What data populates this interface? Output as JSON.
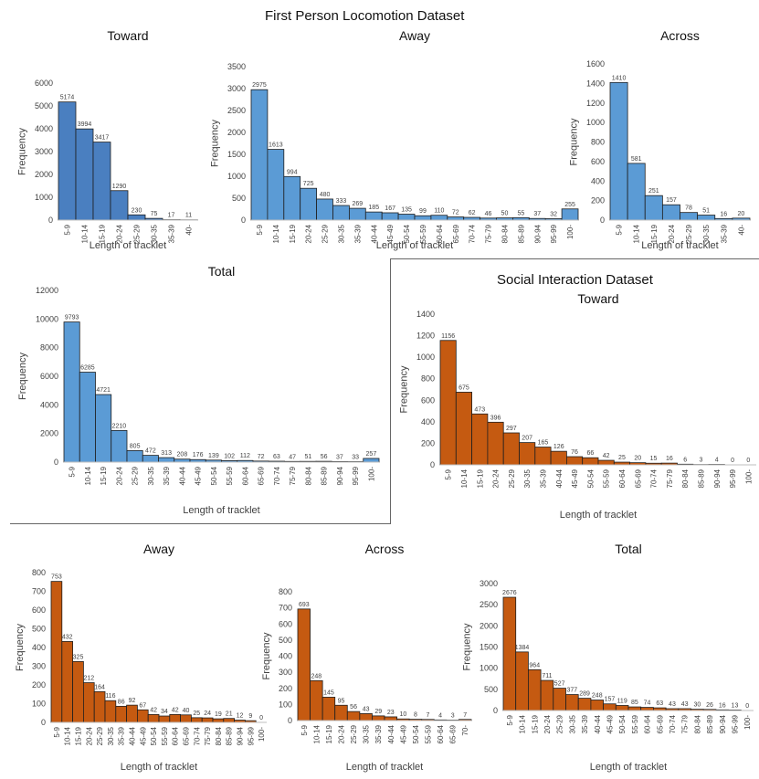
{
  "page": {
    "fpl_title": "First Person Locomotion Dataset",
    "si_title": "Social Interaction Dataset"
  },
  "colors": {
    "blue": "#5b9bd5",
    "blue_dark": "#4a7fc0",
    "orange": "#c55a11",
    "axis": "#bfbfbf",
    "grid": "#d9d9d9"
  },
  "chart_data": [
    {
      "id": "fpl-toward",
      "type": "bar",
      "title": "Toward",
      "xlabel": "Length of tracklet",
      "ylabel": "Frequency",
      "ylim": [
        0,
        6000
      ],
      "yticks": [
        0,
        1000,
        2000,
        3000,
        4000,
        5000,
        6000
      ],
      "categories": [
        "5-9",
        "10-14",
        "15-19",
        "20-24",
        "25-29",
        "30-35",
        "35-39",
        "40-"
      ],
      "values": [
        5174,
        3994,
        3417,
        1290,
        230,
        75,
        17,
        11
      ],
      "color": "#4a7fc0"
    },
    {
      "id": "fpl-away",
      "type": "bar",
      "title": "Away",
      "xlabel": "Length of tracklet",
      "ylabel": "Frequency",
      "ylim": [
        0,
        3500
      ],
      "yticks": [
        0,
        500,
        1000,
        1500,
        2000,
        2500,
        3000,
        3500
      ],
      "categories": [
        "5-9",
        "10-14",
        "15-19",
        "20-24",
        "25-29",
        "30-35",
        "35-39",
        "40-44",
        "45-49",
        "50-54",
        "55-59",
        "60-64",
        "65-69",
        "70-74",
        "75-79",
        "80-84",
        "85-89",
        "90-94",
        "95-99",
        "100-"
      ],
      "values": [
        2975,
        1613,
        994,
        725,
        480,
        333,
        269,
        185,
        167,
        135,
        99,
        110,
        72,
        62,
        46,
        50,
        55,
        37,
        32,
        255
      ],
      "color": "#5b9bd5"
    },
    {
      "id": "fpl-across",
      "type": "bar",
      "title": "Across",
      "xlabel": "Length of tracklet",
      "ylabel": "Frequency",
      "ylim": [
        0,
        1600
      ],
      "yticks": [
        0,
        200,
        400,
        600,
        800,
        1000,
        1200,
        1400,
        1600
      ],
      "categories": [
        "5-9",
        "10-14",
        "15-19",
        "20-24",
        "25-29",
        "30-35",
        "35-39",
        "40-"
      ],
      "values": [
        1410,
        581,
        251,
        157,
        78,
        51,
        16,
        20
      ],
      "color": "#5b9bd5"
    },
    {
      "id": "fpl-total",
      "type": "bar",
      "title": "Total",
      "xlabel": "Length of tracklet",
      "ylabel": "Frequency",
      "ylim": [
        0,
        12000
      ],
      "yticks": [
        0,
        2000,
        4000,
        6000,
        8000,
        10000,
        12000
      ],
      "categories": [
        "5-9",
        "10-14",
        "15-19",
        "20-24",
        "25-29",
        "30-35",
        "35-39",
        "40-44",
        "45-49",
        "50-54",
        "55-59",
        "60-64",
        "65-69",
        "70-74",
        "75-79",
        "80-84",
        "85-89",
        "90-94",
        "95-99",
        "100-"
      ],
      "values": [
        9793,
        6285,
        4721,
        2210,
        805,
        472,
        313,
        208,
        176,
        139,
        102,
        112,
        72,
        63,
        47,
        51,
        56,
        37,
        33,
        257
      ],
      "color": "#5b9bd5"
    },
    {
      "id": "si-toward",
      "type": "bar",
      "title": "Toward",
      "xlabel": "Length of tracklet",
      "ylabel": "Frequency",
      "ylim": [
        0,
        1400
      ],
      "yticks": [
        0,
        200,
        400,
        600,
        800,
        1000,
        1200,
        1400
      ],
      "categories": [
        "5-9",
        "10-14",
        "15-19",
        "20-24",
        "25-29",
        "30-35",
        "35-39",
        "40-44",
        "45-49",
        "50-54",
        "55-59",
        "60-64",
        "65-69",
        "70-74",
        "75-79",
        "80-84",
        "85-89",
        "90-94",
        "95-99",
        "100-"
      ],
      "values": [
        1156,
        675,
        473,
        396,
        297,
        207,
        165,
        126,
        76,
        66,
        42,
        25,
        20,
        15,
        16,
        6,
        3,
        4,
        0,
        0
      ],
      "color": "#c55a11"
    },
    {
      "id": "si-away",
      "type": "bar",
      "title": "Away",
      "xlabel": "Length of tracklet",
      "ylabel": "Frequency",
      "ylim": [
        0,
        800
      ],
      "yticks": [
        0,
        100,
        200,
        300,
        400,
        500,
        600,
        700,
        800
      ],
      "categories": [
        "5-9",
        "10-14",
        "15-19",
        "20-24",
        "25-29",
        "30-35",
        "35-39",
        "40-44",
        "45-49",
        "50-54",
        "55-59",
        "60-64",
        "65-69",
        "70-74",
        "75-79",
        "80-84",
        "85-89",
        "90-94",
        "95-99",
        "100-"
      ],
      "values": [
        753,
        432,
        325,
        212,
        164,
        116,
        86,
        92,
        67,
        42,
        34,
        42,
        40,
        25,
        24,
        19,
        21,
        12,
        9,
        0
      ],
      "color": "#c55a11"
    },
    {
      "id": "si-across",
      "type": "bar",
      "title": "Across",
      "xlabel": "Length of tracklet",
      "ylabel": "Frequency",
      "ylim": [
        0,
        800
      ],
      "yticks": [
        0,
        100,
        200,
        300,
        400,
        500,
        600,
        700,
        800
      ],
      "categories": [
        "5-9",
        "10-14",
        "15-19",
        "20-24",
        "25-29",
        "30-35",
        "35-39",
        "40-44",
        "45-49",
        "50-54",
        "55-59",
        "60-64",
        "65-69",
        "70-"
      ],
      "values": [
        693,
        248,
        145,
        95,
        56,
        43,
        29,
        23,
        10,
        8,
        7,
        4,
        3,
        7
      ],
      "color": "#c55a11"
    },
    {
      "id": "si-total",
      "type": "bar",
      "title": "Total",
      "xlabel": "Length of tracklet",
      "ylabel": "Frequency",
      "ylim": [
        0,
        3000
      ],
      "yticks": [
        0,
        500,
        1000,
        1500,
        2000,
        2500,
        3000
      ],
      "categories": [
        "5-9",
        "10-14",
        "15-19",
        "20-24",
        "25-29",
        "30-35",
        "35-39",
        "40-44",
        "45-49",
        "50-54",
        "55-59",
        "60-64",
        "65-69",
        "70-74",
        "75-79",
        "80-84",
        "85-89",
        "90-94",
        "95-99",
        "100-"
      ],
      "values": [
        2676,
        1384,
        964,
        711,
        527,
        377,
        289,
        248,
        157,
        119,
        85,
        74,
        63,
        43,
        43,
        30,
        26,
        16,
        13,
        0
      ],
      "color": "#c55a11"
    }
  ]
}
